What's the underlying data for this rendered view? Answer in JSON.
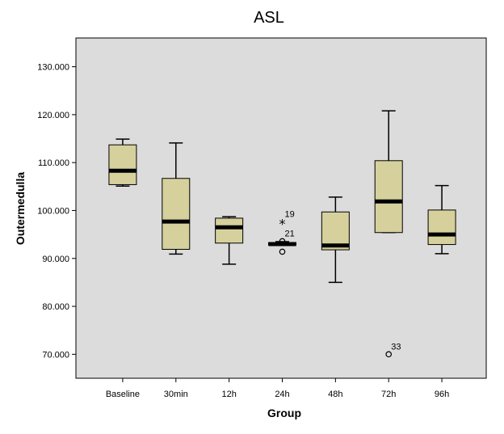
{
  "chart_data": {
    "type": "boxplot",
    "title": "ASL",
    "xlabel": "Group",
    "ylabel": "Outermedulla",
    "ylim": [
      65,
      136
    ],
    "yticks": [
      70,
      80,
      90,
      100,
      110,
      120,
      130
    ],
    "ytick_labels": [
      "70.000",
      "80.000",
      "90.000",
      "100.000",
      "110.000",
      "120.000",
      "130.000"
    ],
    "categories": [
      "Baseline",
      "30min",
      "12h",
      "24h",
      "48h",
      "72h",
      "96h"
    ],
    "boxes": [
      {
        "min": 105.1,
        "q1": 105.4,
        "median": 108.3,
        "q3": 113.7,
        "max": 114.9
      },
      {
        "min": 90.9,
        "q1": 91.9,
        "median": 97.7,
        "q3": 106.7,
        "max": 114.1
      },
      {
        "min": 88.8,
        "q1": 93.2,
        "median": 96.5,
        "q3": 98.4,
        "max": 98.7
      },
      {
        "min": 92.7,
        "q1": 92.8,
        "median": 93.0,
        "q3": 93.3,
        "max": 93.5
      },
      {
        "min": 85.0,
        "q1": 91.8,
        "median": 92.7,
        "q3": 99.7,
        "max": 102.8
      },
      {
        "min": 95.4,
        "q1": 95.4,
        "median": 101.9,
        "q3": 110.4,
        "max": 120.8
      },
      {
        "min": 91.0,
        "q1": 92.9,
        "median": 95.0,
        "q3": 100.1,
        "max": 105.2
      }
    ],
    "outliers": [
      {
        "category": "24h",
        "value": 97.6,
        "marker": "star",
        "label": "19"
      },
      {
        "category": "24h",
        "value": 93.6,
        "marker": "circle",
        "label": "21"
      },
      {
        "category": "24h",
        "value": 91.4,
        "marker": "circle",
        "label": ""
      },
      {
        "category": "72h",
        "value": 70.0,
        "marker": "circle",
        "label": "33"
      }
    ],
    "colors": {
      "plot_background": "#dcdcdc",
      "box_fill": "#d6d09c",
      "stroke": "#000000"
    },
    "grid": false
  }
}
